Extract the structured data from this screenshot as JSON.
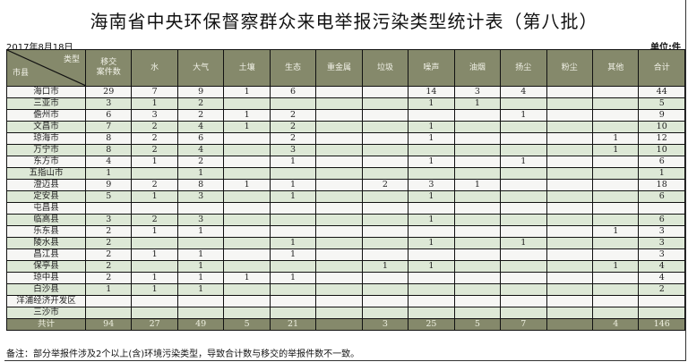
{
  "title": "海南省中央环保督察群众来电举报污染类型统计表（第八批）",
  "date": "2017年8月18日",
  "unit": "单位:件",
  "header": {
    "corner_top": "类型",
    "corner_bottom": "市县",
    "columns": [
      "移交\n案件数",
      "水",
      "大气",
      "土壤",
      "生态",
      "重金属",
      "垃圾",
      "噪声",
      "油烟",
      "扬尘",
      "粉尘",
      "其他",
      "合计"
    ]
  },
  "rows": [
    {
      "name": "海口市",
      "values": [
        "29",
        "7",
        "9",
        "1",
        "6",
        "",
        "",
        "14",
        "3",
        "4",
        "",
        "",
        "44"
      ]
    },
    {
      "name": "三亚市",
      "values": [
        "3",
        "1",
        "2",
        "",
        "",
        "",
        "",
        "1",
        "1",
        "",
        "",
        "",
        "5"
      ]
    },
    {
      "name": "儋州市",
      "values": [
        "6",
        "3",
        "2",
        "1",
        "2",
        "",
        "",
        "",
        "",
        "1",
        "",
        "",
        "9"
      ]
    },
    {
      "name": "文昌市",
      "values": [
        "7",
        "2",
        "4",
        "1",
        "2",
        "",
        "",
        "1",
        "",
        "",
        "",
        "",
        "10"
      ]
    },
    {
      "name": "琼海市",
      "values": [
        "8",
        "2",
        "6",
        "",
        "2",
        "",
        "",
        "1",
        "",
        "",
        "",
        "1",
        "12"
      ]
    },
    {
      "name": "万宁市",
      "values": [
        "8",
        "2",
        "4",
        "",
        "3",
        "",
        "",
        "",
        "",
        "",
        "",
        "1",
        "10"
      ]
    },
    {
      "name": "东方市",
      "values": [
        "4",
        "1",
        "2",
        "",
        "1",
        "",
        "",
        "1",
        "",
        "1",
        "",
        "",
        "6"
      ]
    },
    {
      "name": "五指山市",
      "values": [
        "1",
        "",
        "1",
        "",
        "",
        "",
        "",
        "",
        "",
        "",
        "",
        "",
        "1"
      ]
    },
    {
      "name": "澄迈县",
      "values": [
        "9",
        "2",
        "8",
        "1",
        "1",
        "",
        "2",
        "3",
        "1",
        "",
        "",
        "",
        "18"
      ]
    },
    {
      "name": "定安县",
      "values": [
        "5",
        "1",
        "3",
        "",
        "1",
        "",
        "",
        "1",
        "",
        "",
        "",
        "",
        "6"
      ]
    },
    {
      "name": "屯昌县",
      "values": [
        "",
        "",
        "",
        "",
        "",
        "",
        "",
        "",
        "",
        "",
        "",
        "",
        ""
      ]
    },
    {
      "name": "临高县",
      "values": [
        "3",
        "2",
        "3",
        "",
        "",
        "",
        "",
        "1",
        "",
        "",
        "",
        "",
        "6"
      ]
    },
    {
      "name": "乐东县",
      "values": [
        "2",
        "1",
        "1",
        "",
        "",
        "",
        "",
        "",
        "",
        "",
        "",
        "1",
        "3"
      ]
    },
    {
      "name": "陵水县",
      "values": [
        "2",
        "",
        "",
        "",
        "1",
        "",
        "",
        "1",
        "",
        "1",
        "",
        "",
        "3"
      ]
    },
    {
      "name": "昌江县",
      "values": [
        "2",
        "1",
        "1",
        "",
        "1",
        "",
        "",
        "",
        "",
        "",
        "",
        "",
        "3"
      ]
    },
    {
      "name": "保亭县",
      "values": [
        "2",
        "",
        "1",
        "",
        "",
        "",
        "1",
        "1",
        "",
        "",
        "",
        "1",
        "4"
      ]
    },
    {
      "name": "琼中县",
      "values": [
        "2",
        "1",
        "1",
        "1",
        "1",
        "",
        "",
        "",
        "",
        "",
        "",
        "",
        "4"
      ]
    },
    {
      "name": "白沙县",
      "values": [
        "1",
        "1",
        "1",
        "",
        "",
        "",
        "",
        "",
        "",
        "",
        "",
        "",
        "2"
      ]
    },
    {
      "name": "洋浦经济开发区",
      "values": [
        "",
        "",
        "",
        "",
        "",
        "",
        "",
        "",
        "",
        "",
        "",
        "",
        ""
      ]
    },
    {
      "name": "三沙市",
      "values": [
        "",
        "",
        "",
        "",
        "",
        "",
        "",
        "",
        "",
        "",
        "",
        "",
        ""
      ]
    }
  ],
  "total": {
    "name": "共计",
    "values": [
      "94",
      "27",
      "49",
      "5",
      "21",
      "",
      "3",
      "25",
      "5",
      "7",
      "",
      "4",
      "146"
    ]
  },
  "note": "备注：部分举报件涉及2个以上(含)环境污染类型，导致合计数与移交的举报件数不一致。",
  "colors": {
    "header_bg": "#85896b",
    "row_even": "#dde8d6",
    "row_odd": "#f6f6f4"
  }
}
